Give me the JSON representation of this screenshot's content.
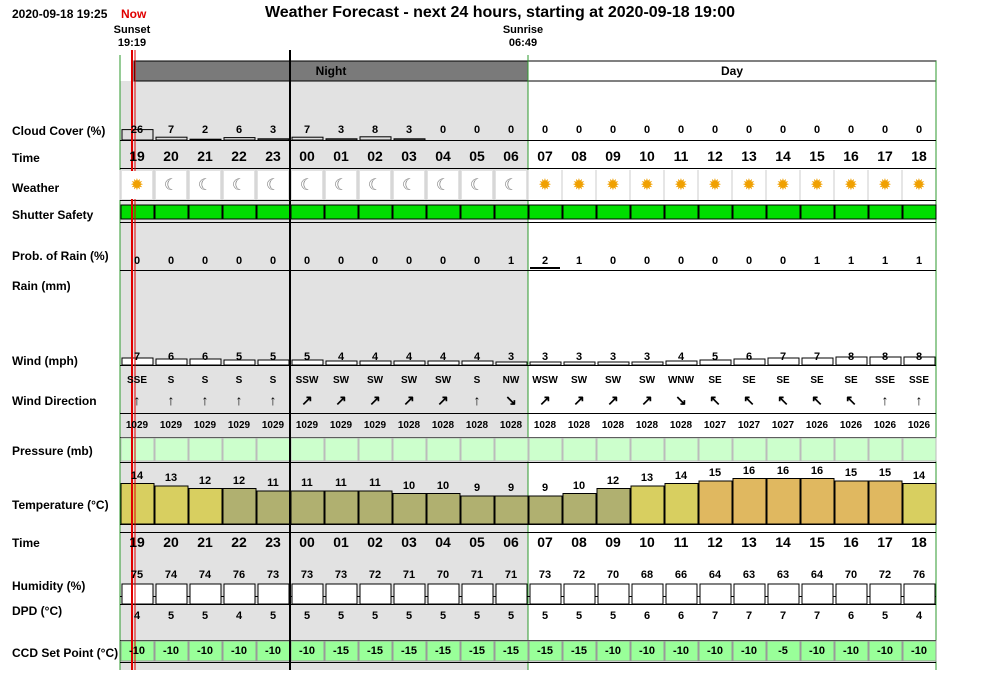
{
  "header": {
    "timestamp": "2020-09-18 19:25",
    "now_label": "Now",
    "title": "Weather Forecast - next 24 hours, starting at 2020-09-18 19:00",
    "sunset_label": "Sunset",
    "sunset_time": "19:19",
    "sunrise_label": "Sunrise",
    "sunrise_time": "06:49"
  },
  "periods": {
    "night": "Night",
    "day": "Day"
  },
  "row_labels": {
    "cloud": "Cloud Cover (%)",
    "time": "Time",
    "weather": "Weather",
    "shutter": "Shutter Safety",
    "prob_rain": "Prob. of Rain (%)",
    "rain": "Rain (mm)",
    "wind": "Wind (mph)",
    "wind_dir": "Wind Direction",
    "pressure": "Pressure (mb)",
    "temperature": "Temperature (°C)",
    "time2": "Time",
    "humidity": "Humidity (%)",
    "dpd": "DPD (°C)",
    "ccd": "CCD Set Point (°C)"
  },
  "hours": [
    "19",
    "20",
    "21",
    "22",
    "23",
    "00",
    "01",
    "02",
    "03",
    "04",
    "05",
    "06",
    "07",
    "08",
    "09",
    "10",
    "11",
    "12",
    "13",
    "14",
    "15",
    "16",
    "17",
    "18"
  ],
  "is_night": [
    true,
    true,
    true,
    true,
    true,
    true,
    true,
    true,
    true,
    true,
    true,
    true,
    false,
    false,
    false,
    false,
    false,
    false,
    false,
    false,
    false,
    false,
    false,
    false
  ],
  "cloud_cover": [
    "26",
    "7",
    "2",
    "6",
    "3",
    "7",
    "3",
    "8",
    "3",
    "0",
    "0",
    "0",
    "0",
    "0",
    "0",
    "0",
    "0",
    "0",
    "0",
    "0",
    "0",
    "0",
    "0",
    "0"
  ],
  "weather_icons": [
    "sun-icon",
    "moon-icon",
    "moon-icon",
    "moon-icon",
    "moon-icon",
    "moon-icon",
    "moon-icon",
    "moon-icon",
    "moon-icon",
    "moon-icon",
    "moon-icon",
    "moon-icon",
    "sun-icon",
    "sun-icon",
    "sun-icon",
    "sun-icon",
    "sun-icon",
    "sun-icon",
    "sun-icon",
    "sun-icon",
    "sun-icon",
    "sun-icon",
    "sun-icon",
    "sun-icon"
  ],
  "shutter_safe": [
    true,
    true,
    true,
    true,
    true,
    true,
    true,
    true,
    true,
    true,
    true,
    true,
    true,
    true,
    true,
    true,
    true,
    true,
    true,
    true,
    true,
    true,
    true,
    true
  ],
  "prob_rain": [
    "0",
    "0",
    "0",
    "0",
    "0",
    "0",
    "0",
    "0",
    "0",
    "0",
    "0",
    "1",
    "2",
    "1",
    "0",
    "0",
    "0",
    "0",
    "0",
    "0",
    "1",
    "1",
    "1",
    "1"
  ],
  "wind_speed": [
    "7",
    "6",
    "6",
    "5",
    "5",
    "5",
    "4",
    "4",
    "4",
    "4",
    "4",
    "3",
    "3",
    "3",
    "3",
    "3",
    "4",
    "5",
    "6",
    "7",
    "7",
    "8",
    "8",
    "8"
  ],
  "wind_dir": [
    "SSE",
    "S",
    "S",
    "S",
    "S",
    "SSW",
    "SW",
    "SW",
    "SW",
    "SW",
    "S",
    "NW",
    "WSW",
    "SW",
    "SW",
    "SW",
    "WNW",
    "SE",
    "SE",
    "SE",
    "SE",
    "SE",
    "SSE",
    "SSE"
  ],
  "pressure": [
    "1029",
    "1029",
    "1029",
    "1029",
    "1029",
    "1029",
    "1029",
    "1029",
    "1028",
    "1028",
    "1028",
    "1028",
    "1028",
    "1028",
    "1028",
    "1028",
    "1028",
    "1027",
    "1027",
    "1027",
    "1026",
    "1026",
    "1026",
    "1026"
  ],
  "temperature": [
    "14",
    "13",
    "12",
    "12",
    "11",
    "11",
    "11",
    "11",
    "10",
    "10",
    "9",
    "9",
    "9",
    "10",
    "12",
    "13",
    "14",
    "15",
    "16",
    "16",
    "16",
    "15",
    "15",
    "14"
  ],
  "humidity": [
    "75",
    "74",
    "74",
    "76",
    "73",
    "73",
    "73",
    "72",
    "71",
    "70",
    "71",
    "71",
    "73",
    "72",
    "70",
    "68",
    "66",
    "64",
    "63",
    "63",
    "64",
    "70",
    "72",
    "76"
  ],
  "dpd": [
    "4",
    "5",
    "5",
    "4",
    "5",
    "5",
    "5",
    "5",
    "5",
    "5",
    "5",
    "5",
    "5",
    "5",
    "5",
    "6",
    "6",
    "7",
    "7",
    "7",
    "7",
    "6",
    "5",
    "4"
  ],
  "ccd_set_point": [
    "-10",
    "-10",
    "-10",
    "-10",
    "-10",
    "-10",
    "-15",
    "-15",
    "-15",
    "-15",
    "-15",
    "-15",
    "-15",
    "-15",
    "-10",
    "-10",
    "-10",
    "-10",
    "-10",
    "-5",
    "-10",
    "-10",
    "-10",
    "-10"
  ],
  "colors": {
    "night_shade": "#e2e2e2",
    "night_header": "#7a7a7a",
    "shutter_green": "#00dd00",
    "pressure_green": "#ccffcc",
    "ccd_green": "#99ff99",
    "now_red": "#e00000",
    "grid_green": "#2e9a2e"
  }
}
